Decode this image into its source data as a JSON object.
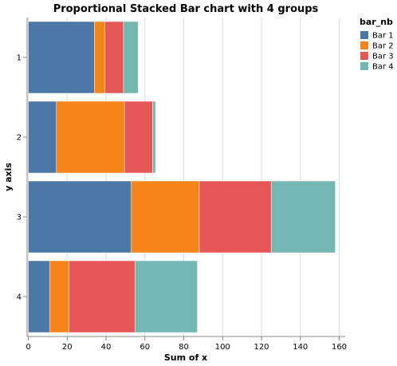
{
  "chart_data": {
    "type": "bar",
    "orientation": "horizontal",
    "stacked": true,
    "title": "Proportional Stacked Bar chart with 4 groups",
    "xlabel": "Sum of x",
    "ylabel": "y axis",
    "xlim": [
      0,
      160
    ],
    "x_ticks": [
      0,
      20,
      40,
      60,
      80,
      100,
      120,
      140,
      160
    ],
    "categories": [
      "1",
      "2",
      "3",
      "4"
    ],
    "grid": true,
    "legend": {
      "title": "bar_nb",
      "placement": "top-right"
    },
    "series": [
      {
        "name": "Bar 1",
        "color": "#4c78a8",
        "values": [
          34,
          14.5,
          53,
          11
        ]
      },
      {
        "name": "Bar 2",
        "color": "#f58518",
        "values": [
          5.5,
          35,
          35,
          10
        ]
      },
      {
        "name": "Bar 3",
        "color": "#e45756",
        "values": [
          9.5,
          14.5,
          37,
          34
        ]
      },
      {
        "name": "Bar 4",
        "color": "#72b7b2",
        "values": [
          7.5,
          1.5,
          33,
          32
        ]
      }
    ]
  }
}
